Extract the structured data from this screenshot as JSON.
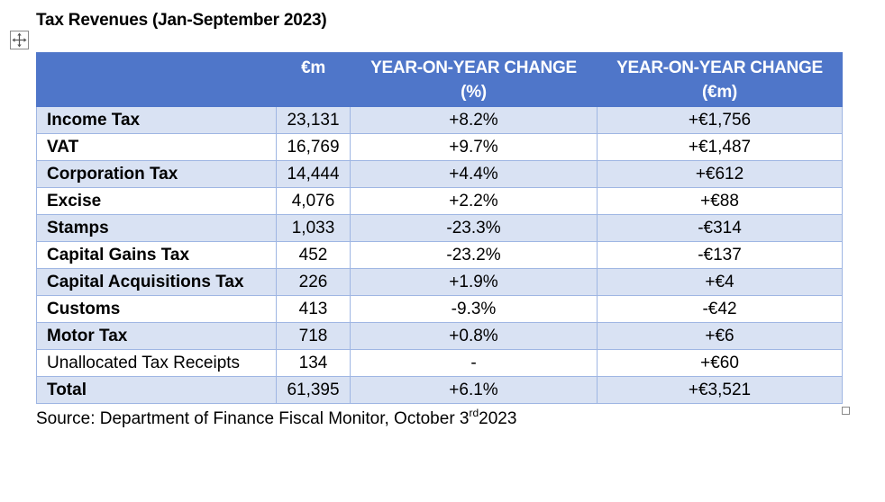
{
  "title": "Tax Revenues (Jan-September 2023)",
  "table": {
    "headers": {
      "label": "",
      "value": "€m",
      "change_pct": [
        "YEAR-ON-YEAR CHANGE",
        "(%)"
      ],
      "change_eur": [
        "YEAR-ON-YEAR CHANGE",
        "(€m)"
      ]
    },
    "rows": [
      {
        "name": "Income Tax",
        "value": "23,131",
        "pct": "+8.2%",
        "eur": "+€1,756",
        "bold": true
      },
      {
        "name": "VAT",
        "value": "16,769",
        "pct": "+9.7%",
        "eur": "+€1,487",
        "bold": true
      },
      {
        "name": "Corporation Tax",
        "value": "14,444",
        "pct": "+4.4%",
        "eur": "+€612",
        "bold": true
      },
      {
        "name": "Excise",
        "value": "4,076",
        "pct": "+2.2%",
        "eur": "+€88",
        "bold": true
      },
      {
        "name": "Stamps",
        "value": "1,033",
        "pct": "-23.3%",
        "eur": "-€314",
        "bold": true
      },
      {
        "name": "Capital Gains Tax",
        "value": "452",
        "pct": "-23.2%",
        "eur": "-€137",
        "bold": true
      },
      {
        "name": "Capital Acquisitions Tax",
        "value": "226",
        "pct": "+1.9%",
        "eur": "+€4",
        "bold": true
      },
      {
        "name": "Customs",
        "value": "413",
        "pct": "-9.3%",
        "eur": "-€42",
        "bold": true
      },
      {
        "name": "Motor Tax",
        "value": "718",
        "pct": "+0.8%",
        "eur": "+€6",
        "bold": true
      },
      {
        "name": "Unallocated Tax Receipts",
        "value": "134",
        "pct": "-",
        "eur": "+€60",
        "bold": false
      },
      {
        "name": "Total",
        "value": "61,395",
        "pct": "+6.1%",
        "eur": "+€3,521",
        "bold": true
      }
    ]
  },
  "source": {
    "prefix": "Source: Department of Finance Fiscal Monitor, October 3",
    "superscript": "rd",
    "suffix": "2023"
  },
  "icons": {
    "move_handle": "move-arrows-icon",
    "resize_handle": "resize-square-icon"
  }
}
